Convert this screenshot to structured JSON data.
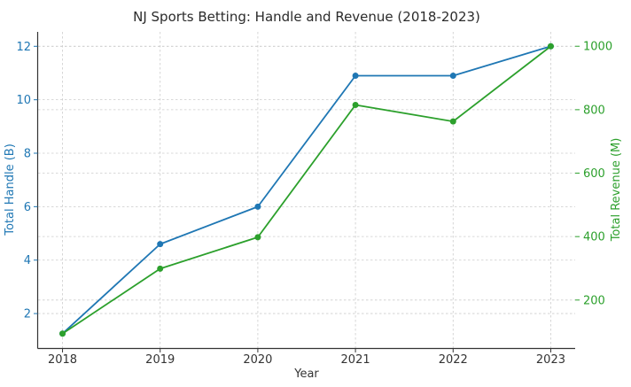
{
  "title": "NJ Sports Betting: Handle and Revenue (2018-2023)",
  "axes": {
    "xlabel": "Year",
    "ylabel_left": "Total Handle (B)",
    "ylabel_right": "Total Revenue (M)"
  },
  "colors": {
    "handle": "#1f77b4",
    "revenue": "#2ca02c",
    "grid": "#cccccc",
    "spine": "#333333",
    "title_text": "#2b2b2b",
    "xtick_text": "#333333",
    "background": "#ffffff"
  },
  "chart_data": {
    "type": "line",
    "title": "NJ Sports Betting: Handle and Revenue (2018-2023)",
    "xlabel": "Year",
    "ylabel_left": "Total Handle (B)",
    "ylabel_right": "Total Revenue (M)",
    "x": [
      2018,
      2019,
      2020,
      2021,
      2022,
      2023
    ],
    "series": [
      {
        "name": "Total Handle (B)",
        "axis": "left",
        "color": "#1f77b4",
        "marker": "circle",
        "values": [
          1.25,
          4.6,
          6.0,
          10.9,
          10.9,
          12.0
        ]
      },
      {
        "name": "Total Revenue (M)",
        "axis": "right",
        "color": "#2ca02c",
        "marker": "circle",
        "values": [
          94,
          299,
          398,
          815,
          763,
          1000
        ]
      }
    ],
    "xticks": [
      2018,
      2019,
      2020,
      2021,
      2022,
      2023
    ],
    "yticks_left": [
      2,
      4,
      6,
      8,
      10,
      12
    ],
    "yticks_right": [
      200,
      400,
      600,
      800,
      1000
    ],
    "xlim": [
      2017.75,
      2023.25
    ],
    "ylim_left": [
      0.71,
      12.54
    ],
    "ylim_right": [
      48.7,
      1045.3
    ],
    "grid": true,
    "grid_style": "dashed",
    "legend": "none"
  }
}
